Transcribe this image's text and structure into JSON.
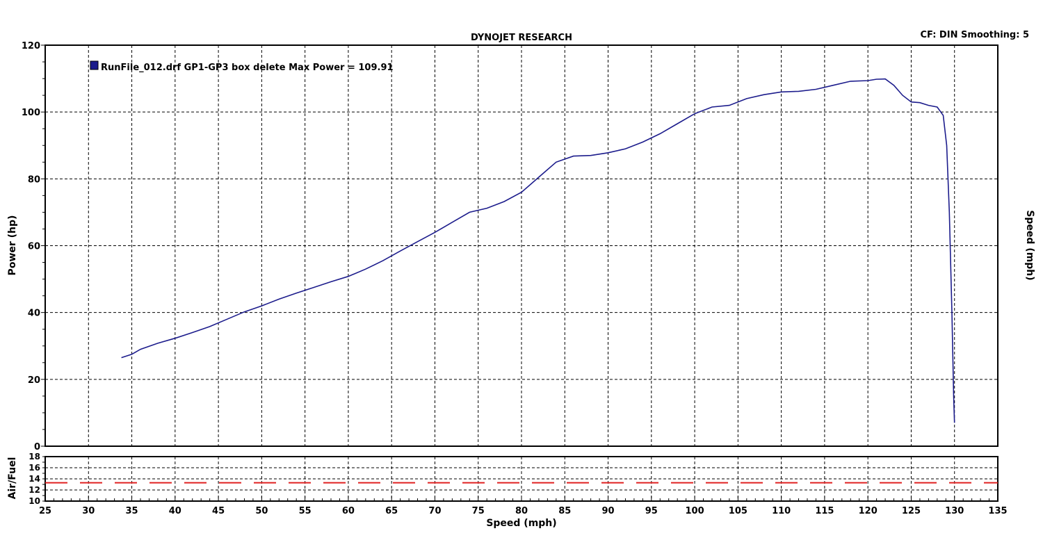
{
  "chart_data": {
    "type": "line",
    "title": "DYNOJET RESEARCH",
    "settings_text": "CF: DIN  Smoothing: 5",
    "legend_text": "RunFile_012.drf GP1-GP3 box delete Max Power = 109.91",
    "xlabel": "Speed (mph)",
    "ylabel": "Power (hp)",
    "y2label": "Speed (mph)",
    "afr_label": "Air/Fuel",
    "xlim": [
      25,
      135
    ],
    "ylim": [
      0,
      120
    ],
    "afr_ylim": [
      10,
      18
    ],
    "grid": true,
    "x_ticks": [
      25,
      30,
      35,
      40,
      45,
      50,
      55,
      60,
      65,
      70,
      75,
      80,
      85,
      90,
      95,
      100,
      105,
      110,
      115,
      120,
      125,
      130,
      135
    ],
    "y_ticks": [
      0,
      20,
      40,
      60,
      80,
      100,
      120
    ],
    "afr_ticks": [
      10,
      12,
      14,
      16,
      18
    ],
    "colors": {
      "power_line": "#1c1c8c",
      "afr_line": "#e02020",
      "grid": "#000000"
    },
    "series": [
      {
        "name": "RunFile_012.drf GP1-GP3 box delete",
        "x": [
          33.8,
          35,
          36,
          38,
          40,
          42,
          44,
          46,
          48,
          50,
          52,
          54,
          56,
          58,
          60,
          62,
          64,
          66,
          68,
          70,
          72,
          74,
          76,
          78,
          80,
          82,
          84,
          86,
          88,
          90,
          92,
          94,
          96,
          98,
          100,
          102,
          104,
          106,
          108,
          110,
          112,
          114,
          116,
          118,
          120,
          121,
          122,
          123,
          124,
          125,
          126,
          127,
          128,
          128.7,
          129.1,
          129.4,
          129.7,
          129.9,
          130.0
        ],
        "values": [
          26.5,
          27.5,
          29,
          30.8,
          32.3,
          34,
          35.8,
          38,
          40.2,
          42,
          44,
          45.8,
          47.5,
          49.2,
          50.8,
          53,
          55.5,
          58.4,
          61.2,
          64,
          67,
          70,
          71.2,
          73.2,
          76,
          80.5,
          85,
          86.8,
          87,
          87.8,
          89,
          91,
          93.5,
          96.5,
          99.5,
          101.5,
          102,
          104,
          105.2,
          106,
          106.2,
          106.8,
          108,
          109.2,
          109.4,
          109.8,
          109.9,
          108,
          105,
          103,
          102.8,
          102,
          101.5,
          99,
          90,
          70,
          40,
          15,
          7
        ]
      },
      {
        "name": "Air/Fuel",
        "x": [
          25,
          135
        ],
        "values": [
          13.3,
          13.3
        ]
      }
    ]
  }
}
